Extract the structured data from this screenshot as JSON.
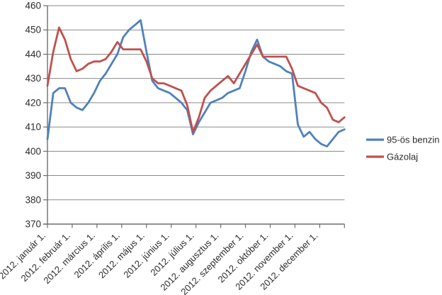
{
  "chart_data": {
    "type": "line",
    "title": "",
    "sampling": "weekly",
    "x_tick_labels": [
      "2012. január 1.",
      "2012. február 1.",
      "2012. március 1.",
      "2012. április 1.",
      "2012. május 1.",
      "2012. június 1.",
      "2012. július 1.",
      "2012. augusztus 1.",
      "2012. szeptember 1.",
      "2012. október 1.",
      "2012. november 1.",
      "2012. december 1."
    ],
    "y_tick_labels": [
      "370",
      "380",
      "390",
      "400",
      "410",
      "420",
      "430",
      "440",
      "450",
      "460"
    ],
    "ylim": [
      370,
      460
    ],
    "ytick_step": 10,
    "grid": true,
    "legend_position": "right",
    "series": [
      {
        "name": "95-ös benzin",
        "color": "#4F81BD",
        "values": [
          405,
          424,
          426,
          426,
          420,
          418,
          417,
          420,
          424,
          429,
          432,
          436,
          440,
          447,
          450,
          452,
          454,
          441,
          429,
          426,
          425,
          424,
          422,
          420,
          417,
          407,
          412,
          416,
          420,
          421,
          422,
          424,
          425,
          426,
          433,
          441,
          446,
          439,
          437,
          436,
          435,
          433,
          432,
          411,
          406,
          408,
          405,
          403,
          402,
          405,
          408,
          409
        ]
      },
      {
        "name": "Gázolaj",
        "color": "#C0504D",
        "values": [
          427,
          441,
          451,
          446,
          438,
          433,
          434,
          436,
          437,
          437,
          438,
          441,
          445,
          442,
          442,
          442,
          442,
          437,
          430,
          428,
          428,
          427,
          426,
          425,
          419,
          408,
          414,
          422,
          425,
          427,
          429,
          431,
          428,
          432,
          436,
          440,
          444,
          439,
          439,
          439,
          439,
          439,
          434,
          427,
          426,
          425,
          424,
          420,
          418,
          413,
          412,
          414
        ]
      }
    ]
  },
  "legend": {
    "items": [
      {
        "label": "95-ös benzin",
        "color": "#4F81BD"
      },
      {
        "label": "Gázolaj",
        "color": "#C0504D"
      }
    ]
  },
  "style": {
    "background": "#FFFFFF",
    "grid_color": "#8A8A8A",
    "axis_color": "#6E6E6E",
    "text_color": "#2B2B2B",
    "series_blue": "#4F81BD",
    "series_red": "#C0504D"
  }
}
